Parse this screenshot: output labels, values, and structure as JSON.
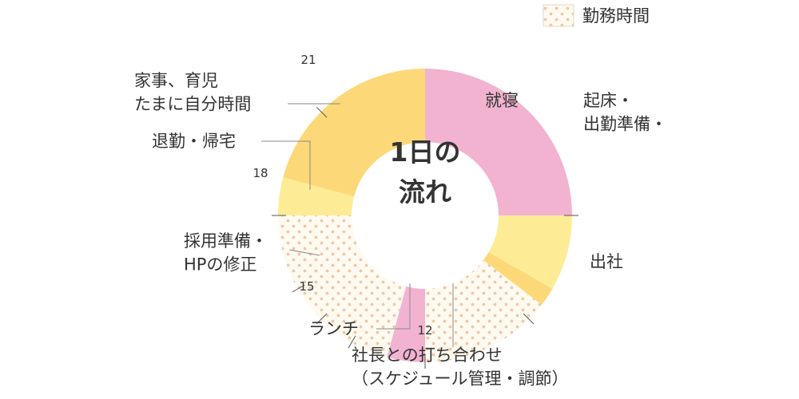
{
  "chart_data": {
    "type": "pie",
    "center_title": [
      "1日の",
      "流れ"
    ],
    "legend": {
      "label": "勤務時間",
      "pattern": "dotted"
    },
    "slices": [
      {
        "start": 24,
        "end": 6,
        "hours": 6,
        "color": "#f2b3d0",
        "pattern": "none",
        "label": "就寝"
      },
      {
        "start": 6,
        "end": 8,
        "hours": 2,
        "color": "#fdec95",
        "pattern": "none",
        "label": "起床・\n出勤準備・"
      },
      {
        "start": 8,
        "end": 8.5,
        "hours": 0.5,
        "color": "#fdd878",
        "pattern": "none",
        "label": "出社"
      },
      {
        "start": 8.5,
        "end": 12,
        "hours": 3.5,
        "color": "#fffaf0",
        "pattern": "dotted",
        "label": "社長との打ち合わせ\n（スケジュール管理・調節）"
      },
      {
        "start": 12,
        "end": 13,
        "hours": 1,
        "color": "#f2b3d0",
        "pattern": "none",
        "label": "ランチ"
      },
      {
        "start": 13,
        "end": 18,
        "hours": 5,
        "color": "#fffaf0",
        "pattern": "dotted",
        "label": "採用準備・\nHPの修正"
      },
      {
        "start": 18,
        "end": 19,
        "hours": 1,
        "color": "#fdec95",
        "pattern": "none",
        "label": "退勤・帰宅"
      },
      {
        "start": 19,
        "end": 24,
        "hours": 5,
        "color": "#fdd878",
        "pattern": "none",
        "label": "家事、育児\nたまに自分時間"
      }
    ],
    "hour_ticks": [
      {
        "hour": 21,
        "label": "21"
      },
      {
        "hour": 18,
        "label": "18"
      },
      {
        "hour": 15,
        "label": "15"
      },
      {
        "hour": 12,
        "label": "12"
      }
    ],
    "unlabeled_tick_hours": [
      6,
      9,
      14,
      16
    ],
    "dot_color": "#ecc8a8"
  }
}
